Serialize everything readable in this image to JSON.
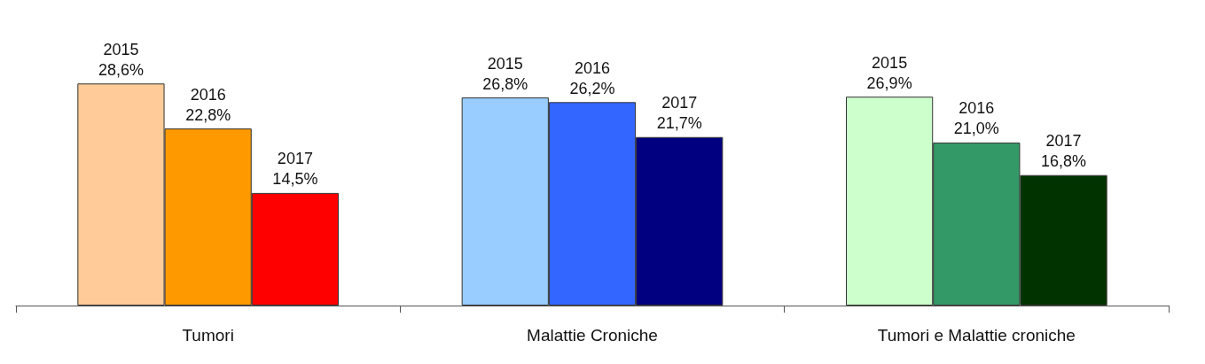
{
  "chart_data": {
    "type": "bar",
    "categories": [
      "Tumori",
      "Malattie Croniche",
      "Tumori e Malattie croniche"
    ],
    "series": [
      {
        "name": "2015",
        "values": [
          28.6,
          26.8,
          26.9
        ],
        "colors": [
          "#ffcc99",
          "#99ccff",
          "#ccffcc"
        ],
        "value_labels": [
          "28,6%",
          "26,8%",
          "26,9%"
        ]
      },
      {
        "name": "2016",
        "values": [
          22.8,
          26.2,
          21.0
        ],
        "colors": [
          "#ff9900",
          "#3366ff",
          "#339966"
        ],
        "value_labels": [
          "22,8%",
          "26,2%",
          "21,0%"
        ]
      },
      {
        "name": "2017",
        "values": [
          14.5,
          21.7,
          16.8
        ],
        "colors": [
          "#ff0000",
          "#000080",
          "#003300"
        ],
        "value_labels": [
          "14,5%",
          "21,7%",
          "16,8%"
        ]
      }
    ]
  }
}
